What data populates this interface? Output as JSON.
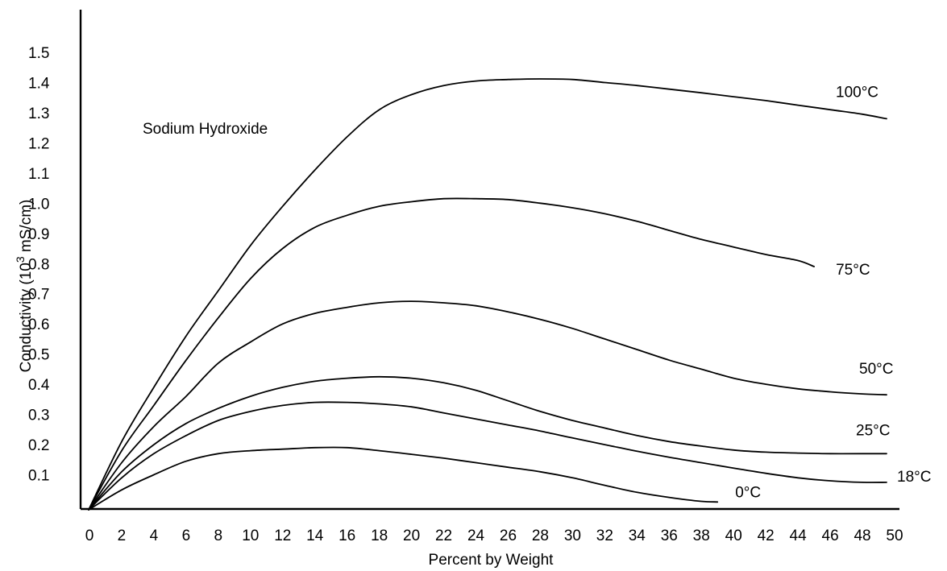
{
  "chart_data": {
    "type": "line",
    "title": "Sodium Hydroxide",
    "xlabel": "Percent by Weight",
    "ylabel_prefix": "Conductivity (10",
    "ylabel_exp": "3",
    "ylabel_suffix": " mS/cm)",
    "xlim": [
      0,
      50
    ],
    "ylim": [
      0,
      1.5
    ],
    "x_ticks": [
      "0",
      "2",
      "4",
      "6",
      "8",
      "10",
      "12",
      "14",
      "16",
      "18",
      "20",
      "22",
      "24",
      "26",
      "28",
      "30",
      "32",
      "34",
      "36",
      "38",
      "40",
      "42",
      "44",
      "46",
      "48",
      "50"
    ],
    "y_ticks": [
      "0.1",
      "0.2",
      "0.3",
      "0.4",
      "0.5",
      "0.6",
      "0.7",
      "0.8",
      "0.9",
      "1.0",
      "1.1",
      "1.2",
      "1.3",
      "1.4",
      "1.5"
    ],
    "grid": false,
    "series": [
      {
        "name": "100°C",
        "x": [
          0,
          2,
          4,
          6,
          8,
          10,
          12,
          14,
          16,
          18,
          20,
          22,
          24,
          26,
          28,
          30,
          32,
          34,
          36,
          38,
          40,
          42,
          44,
          46,
          48,
          49.5
        ],
        "y": [
          0,
          0.21,
          0.39,
          0.56,
          0.71,
          0.86,
          0.99,
          1.11,
          1.22,
          1.31,
          1.36,
          1.39,
          1.405,
          1.41,
          1.412,
          1.41,
          1.4,
          1.39,
          1.378,
          1.366,
          1.353,
          1.34,
          1.325,
          1.31,
          1.295,
          1.28
        ]
      },
      {
        "name": "75°C",
        "x": [
          0,
          2,
          4,
          6,
          8,
          10,
          12,
          14,
          16,
          18,
          20,
          22,
          24,
          26,
          28,
          30,
          32,
          34,
          36,
          38,
          40,
          42,
          44,
          45
        ],
        "y": [
          0,
          0.18,
          0.33,
          0.48,
          0.62,
          0.75,
          0.85,
          0.92,
          0.96,
          0.99,
          1.005,
          1.015,
          1.015,
          1.012,
          1.0,
          0.985,
          0.965,
          0.94,
          0.91,
          0.88,
          0.855,
          0.83,
          0.81,
          0.79
        ]
      },
      {
        "name": "50°C",
        "x": [
          0,
          2,
          4,
          6,
          8,
          10,
          12,
          14,
          16,
          18,
          20,
          22,
          24,
          26,
          28,
          30,
          32,
          34,
          36,
          38,
          40,
          42,
          44,
          46,
          48,
          49.5
        ],
        "y": [
          0,
          0.14,
          0.26,
          0.36,
          0.47,
          0.54,
          0.6,
          0.635,
          0.655,
          0.67,
          0.675,
          0.67,
          0.66,
          0.64,
          0.615,
          0.585,
          0.55,
          0.515,
          0.48,
          0.45,
          0.42,
          0.4,
          0.385,
          0.375,
          0.368,
          0.365
        ]
      },
      {
        "name": "25°C",
        "x": [
          0,
          2,
          4,
          6,
          8,
          10,
          12,
          14,
          16,
          18,
          20,
          22,
          24,
          26,
          28,
          30,
          32,
          34,
          36,
          38,
          40,
          42,
          44,
          46,
          48,
          49.5
        ],
        "y": [
          0,
          0.11,
          0.2,
          0.27,
          0.32,
          0.36,
          0.39,
          0.41,
          0.42,
          0.425,
          0.42,
          0.405,
          0.38,
          0.345,
          0.31,
          0.28,
          0.255,
          0.23,
          0.21,
          0.195,
          0.182,
          0.175,
          0.172,
          0.17,
          0.17,
          0.17
        ]
      },
      {
        "name": "18°C",
        "x": [
          0,
          2,
          4,
          6,
          8,
          10,
          12,
          14,
          16,
          18,
          20,
          22,
          24,
          26,
          28,
          30,
          32,
          34,
          36,
          38,
          40,
          42,
          44,
          46,
          48,
          49.5
        ],
        "y": [
          0,
          0.09,
          0.17,
          0.23,
          0.28,
          0.31,
          0.33,
          0.34,
          0.34,
          0.335,
          0.325,
          0.305,
          0.285,
          0.265,
          0.245,
          0.222,
          0.2,
          0.178,
          0.158,
          0.14,
          0.122,
          0.105,
          0.09,
          0.08,
          0.075,
          0.075
        ]
      },
      {
        "name": "0°C",
        "x": [
          0,
          2,
          4,
          6,
          8,
          10,
          12,
          14,
          16,
          18,
          20,
          22,
          24,
          26,
          28,
          30,
          32,
          34,
          36,
          38,
          39
        ],
        "y": [
          0,
          0.05,
          0.1,
          0.145,
          0.17,
          0.18,
          0.185,
          0.19,
          0.19,
          0.18,
          0.168,
          0.155,
          0.14,
          0.125,
          0.11,
          0.09,
          0.065,
          0.042,
          0.025,
          0.012,
          0.01
        ]
      }
    ]
  }
}
